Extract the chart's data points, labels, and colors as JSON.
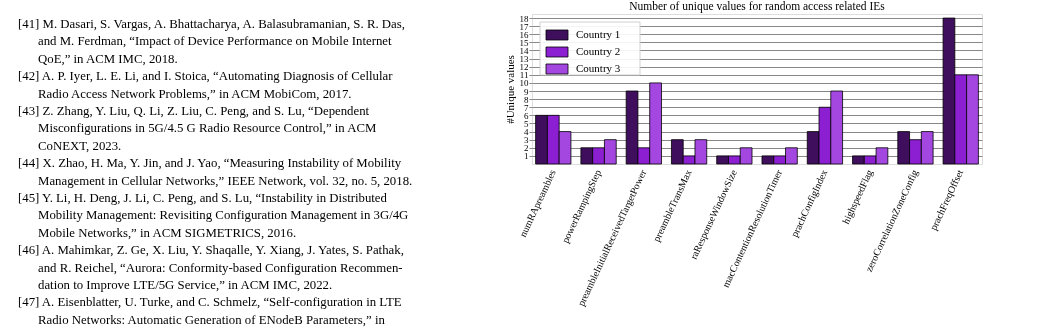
{
  "chart_data": {
    "type": "bar",
    "title": "Number of unique values for random access related IEs",
    "ylabel": "#Unique values",
    "categories": [
      "numRApreambles",
      "powerRampingStep",
      "preambleInitialReceivedTargetPower",
      "preambleTransMax",
      "raResponseWindowSize",
      "macContentionResolutionTimer",
      "prachConfigIndex",
      "highspeedFlag",
      "zeroCorrelationZoneConfig",
      "prachFreqOffset"
    ],
    "series": [
      {
        "name": "Country 1",
        "color": "#3f0f5e",
        "values": [
          6,
          2,
          9,
          3,
          1,
          1,
          4,
          1,
          4,
          18
        ]
      },
      {
        "name": "Country 2",
        "color": "#8b1fd1",
        "values": [
          6,
          2,
          2,
          1,
          1,
          1,
          7,
          1,
          3,
          11
        ]
      },
      {
        "name": "Country 3",
        "color": "#a447e0",
        "values": [
          4,
          3,
          10,
          3,
          2,
          2,
          9,
          2,
          4,
          11
        ]
      }
    ],
    "ylim": [
      0,
      18.5
    ],
    "yticks": [
      1,
      2,
      3,
      4,
      5,
      6,
      7,
      8,
      9,
      10,
      11,
      12,
      13,
      14,
      15,
      16,
      17,
      18
    ],
    "grid": "y",
    "legend": "top left",
    "annotations": [
      "[41] M. Dasari, S. Vargas, A. Bhattacharya, A. Balasubramanian, S. R. Das,\nand M. Ferdman, “Impact of Device Performance on Mobile Internet\nQoE,” in ACM IMC, 2018.",
      "[42] A. P. Iyer, L. E. Li, and I. Stoica, “Automating Diagnosis of Cellular\nRadio Access Network Problems,” in ACM MobiCom, 2017.",
      "[43] Z. Zhang, Y. Liu, Q. Li, Z. Liu, C. Peng, and S. Lu, “Dependent\nMisconfigurations in 5G/4.5 G Radio Resource Control,” in ACM\nCoNEXT, 2023.",
      "[44] X. Zhao, H. Ma, Y. Jin, and J. Yao, “Measuring Instability of Mobility\nManagement in Cellular Networks,” IEEE Network, vol. 32, no. 5, 2018.",
      "[45] Y. Li, H. Deng, J. Li, C. Peng, and S. Lu, “Instability in Distributed\nMobility Management: Revisiting Configuration Management in 3G/4G\nMobile Networks,” in ACM SIGMETRICS, 2016.",
      "[46] A. Mahimkar, Z. Ge, X. Liu, Y. Shaqalle, Y. Xiang, J. Yates, S. Pathak,\nand R. Reichel, “Aurora: Conformity-based Configuration Recommen-\ndation to Improve LTE/5G Service,” in ACM IMC, 2022.",
      "[47] A. Eisenblatter, U. Turke, and C. Schmelz, “Self-configuration in LTE\nRadio Networks: Automatic Generation of ENodeB Parameters,” in"
    ]
  }
}
